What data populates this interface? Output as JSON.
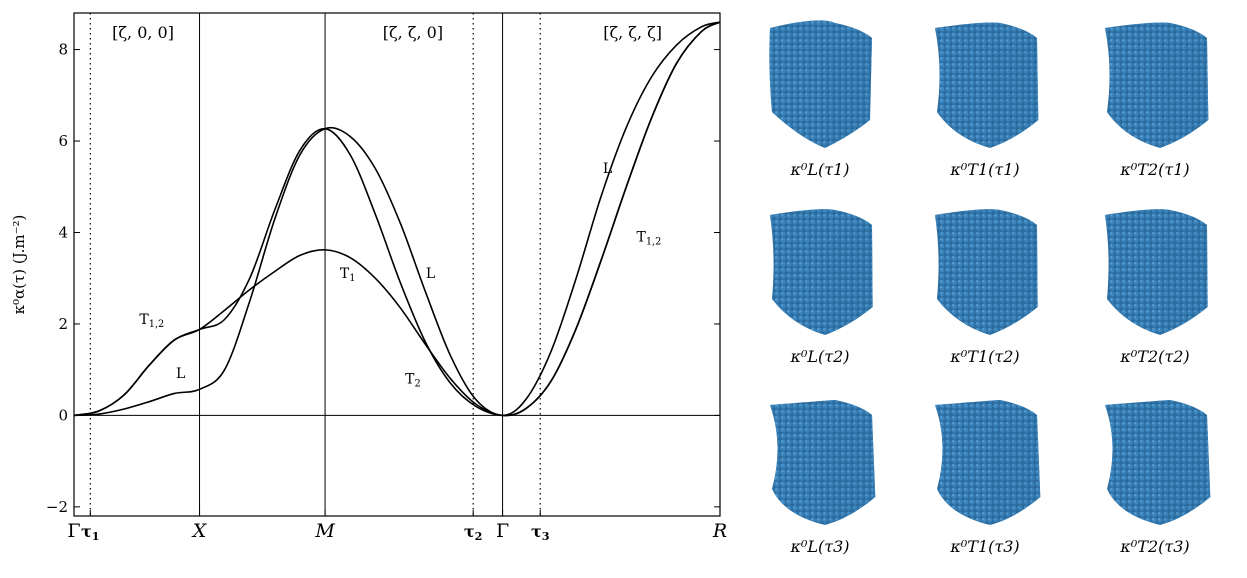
{
  "chart_data": {
    "type": "line",
    "ylabel": "κ⁰α(τ) (J.m⁻²)",
    "ylim": [
      -2.2,
      8.8
    ],
    "yticks": [
      -2,
      0,
      2,
      4,
      6,
      8
    ],
    "xticks": [
      {
        "label": "Γ",
        "pos": 0.0,
        "italic": false
      },
      {
        "label": "τ1",
        "pos": 0.13,
        "bold": true
      },
      {
        "label": "X",
        "pos": 1.0,
        "italic": true
      },
      {
        "label": "M",
        "pos": 2.0,
        "italic": true
      },
      {
        "label": "τ2",
        "pos": 3.18,
        "bold": true
      },
      {
        "label": "Γ",
        "pos": 3.414,
        "italic": false
      },
      {
        "label": "τ3",
        "pos": 3.714,
        "bold": true
      },
      {
        "label": "R",
        "pos": 5.146,
        "italic": true
      }
    ],
    "segment_labels": [
      "[ζ, 0, 0]",
      "[ζ, ζ, 0]",
      "[ζ, ζ, ζ]"
    ],
    "series": [
      {
        "label": "L",
        "points": [
          [
            0,
            0
          ],
          [
            0.2,
            0.03
          ],
          [
            0.4,
            0.14
          ],
          [
            0.6,
            0.3
          ],
          [
            0.8,
            0.48
          ],
          [
            1.0,
            0.57
          ],
          [
            1.2,
            1.0
          ],
          [
            1.4,
            2.5
          ],
          [
            1.6,
            4.3
          ],
          [
            1.8,
            5.7
          ],
          [
            2.0,
            6.27
          ],
          [
            2.2,
            6.1
          ],
          [
            2.4,
            5.4
          ],
          [
            2.6,
            4.2
          ],
          [
            2.8,
            2.7
          ],
          [
            3.0,
            1.3
          ],
          [
            3.2,
            0.35
          ],
          [
            3.414,
            0
          ],
          [
            3.6,
            0.35
          ],
          [
            3.8,
            1.4
          ],
          [
            4.0,
            3.0
          ],
          [
            4.2,
            4.8
          ],
          [
            4.4,
            6.3
          ],
          [
            4.6,
            7.4
          ],
          [
            4.8,
            8.1
          ],
          [
            5.0,
            8.5
          ],
          [
            5.146,
            8.6
          ]
        ]
      },
      {
        "label": "T2",
        "points": [
          [
            0,
            0
          ],
          [
            0.2,
            0.1
          ],
          [
            0.4,
            0.45
          ],
          [
            0.6,
            1.1
          ],
          [
            0.8,
            1.65
          ],
          [
            1.0,
            1.88
          ],
          [
            1.2,
            2.1
          ],
          [
            1.4,
            3.0
          ],
          [
            1.6,
            4.5
          ],
          [
            1.8,
            5.8
          ],
          [
            2.0,
            6.27
          ],
          [
            2.2,
            5.7
          ],
          [
            2.4,
            4.4
          ],
          [
            2.6,
            2.9
          ],
          [
            2.8,
            1.6
          ],
          [
            3.0,
            0.7
          ],
          [
            3.2,
            0.2
          ],
          [
            3.414,
            0
          ],
          [
            3.6,
            0.15
          ],
          [
            3.8,
            0.75
          ],
          [
            4.0,
            1.9
          ],
          [
            4.2,
            3.4
          ],
          [
            4.4,
            5.0
          ],
          [
            4.6,
            6.5
          ],
          [
            4.8,
            7.7
          ],
          [
            5.0,
            8.4
          ],
          [
            5.146,
            8.6
          ]
        ]
      },
      {
        "label": "T1",
        "points": [
          [
            0,
            0
          ],
          [
            0.2,
            0.1
          ],
          [
            0.4,
            0.45
          ],
          [
            0.6,
            1.1
          ],
          [
            0.8,
            1.65
          ],
          [
            1.0,
            1.88
          ],
          [
            1.2,
            2.3
          ],
          [
            1.4,
            2.75
          ],
          [
            1.6,
            3.15
          ],
          [
            1.8,
            3.5
          ],
          [
            2.0,
            3.62
          ],
          [
            2.2,
            3.45
          ],
          [
            2.4,
            3.0
          ],
          [
            2.6,
            2.35
          ],
          [
            2.8,
            1.55
          ],
          [
            3.0,
            0.8
          ],
          [
            3.2,
            0.25
          ],
          [
            3.414,
            0
          ],
          [
            3.6,
            0.15
          ],
          [
            3.8,
            0.75
          ],
          [
            4.0,
            1.9
          ],
          [
            4.2,
            3.4
          ],
          [
            4.4,
            5.0
          ],
          [
            4.6,
            6.5
          ],
          [
            4.8,
            7.7
          ],
          [
            5.0,
            8.4
          ],
          [
            5.146,
            8.6
          ]
        ]
      }
    ],
    "curve_labels": [
      {
        "text": "T1,2",
        "x": 0.62,
        "y": 2.0
      },
      {
        "text": "L",
        "x": 0.85,
        "y": 0.82
      },
      {
        "text": "T1",
        "x": 2.18,
        "y": 3.0
      },
      {
        "text": "L",
        "x": 2.84,
        "y": 3.0
      },
      {
        "text": "T2",
        "x": 2.7,
        "y": 0.7
      },
      {
        "text": "L",
        "x": 4.25,
        "y": 5.3
      },
      {
        "text": "T1,2",
        "x": 4.58,
        "y": 3.8
      }
    ]
  },
  "cubes": [
    {
      "label": "κ⁰L(τ1)"
    },
    {
      "label": "κ⁰T1(τ1)"
    },
    {
      "label": "κ⁰T2(τ1)"
    },
    {
      "label": "κ⁰L(τ2)"
    },
    {
      "label": "κ⁰T1(τ2)"
    },
    {
      "label": "κ⁰T2(τ2)"
    },
    {
      "label": "κ⁰L(τ3)"
    },
    {
      "label": "κ⁰T1(τ3)"
    },
    {
      "label": "κ⁰T2(τ3)"
    }
  ],
  "colors": {
    "cube": "#3b84bd",
    "cube_dark": "#2a6a9c",
    "cube_light": "#5aa0d2"
  }
}
